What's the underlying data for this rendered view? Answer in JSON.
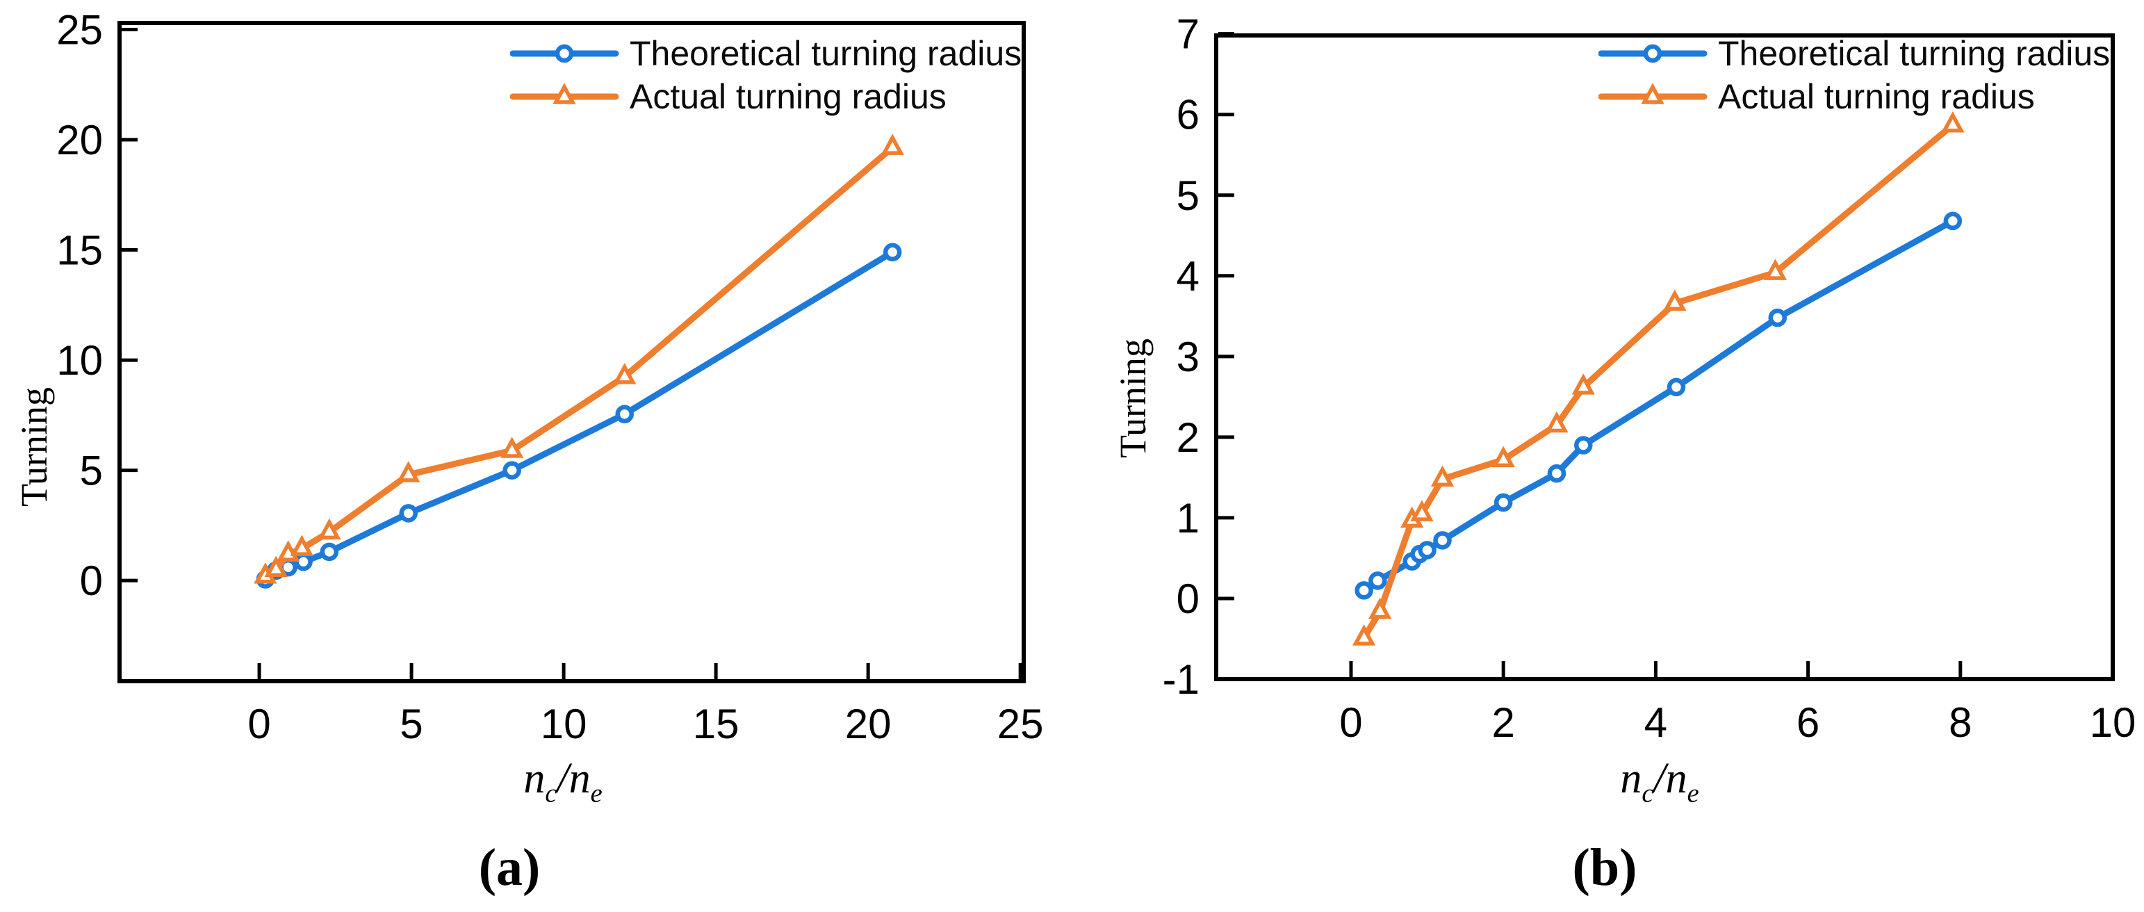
{
  "chart_data": [
    {
      "id": "a",
      "type": "line",
      "caption": "(a)",
      "ylabel": "Turning",
      "xlabel": {
        "var1": "n",
        "sub1": "c",
        "divider": "/",
        "var2": "n",
        "sub2": "e"
      },
      "x_ticks": [
        0,
        5,
        10,
        15,
        20,
        25
      ],
      "y_ticks": [
        0,
        5,
        10,
        15,
        20,
        25
      ],
      "x_range": [
        -4.59,
        25.11
      ],
      "y_range": [
        -4.57,
        25.3
      ],
      "grid": false,
      "legend_position": "top-right-inside",
      "series": [
        {
          "name": "Theoretical turning radius",
          "color": "#1e7ad8",
          "marker": "circle",
          "points": [
            [
              0.2,
              0.05
            ],
            [
              0.55,
              0.45
            ],
            [
              0.95,
              0.6
            ],
            [
              1.45,
              0.85
            ],
            [
              2.3,
              1.3
            ],
            [
              4.9,
              3.05
            ],
            [
              8.3,
              5.0
            ],
            [
              12,
              7.55
            ],
            [
              20.8,
              14.9
            ]
          ]
        },
        {
          "name": "Actual turning radius",
          "color": "#ef7e2e",
          "marker": "triangle",
          "points": [
            [
              0.2,
              0.2
            ],
            [
              0.55,
              0.5
            ],
            [
              0.95,
              1.2
            ],
            [
              1.4,
              1.45
            ],
            [
              2.3,
              2.2
            ],
            [
              4.9,
              4.8
            ],
            [
              8.3,
              5.9
            ],
            [
              12,
              9.25
            ],
            [
              20.8,
              19.65
            ]
          ]
        }
      ]
    },
    {
      "id": "b",
      "type": "line",
      "caption": "(b)",
      "ylabel": "Turning",
      "xlabel": {
        "var1": "n",
        "sub1": "c",
        "divider": "/",
        "var2": "n",
        "sub2": "e"
      },
      "x_ticks": [
        0,
        2,
        4,
        6,
        8,
        10
      ],
      "y_ticks": [
        -1,
        0,
        1,
        2,
        3,
        4,
        5,
        6,
        7
      ],
      "x_range": [
        -1.77,
        10.0
      ],
      "y_range": [
        -1.0,
        6.98
      ],
      "grid": false,
      "legend_position": "top-right-inside",
      "series": [
        {
          "name": "Theoretical turning radius",
          "color": "#1e7ad8",
          "marker": "circle",
          "points": [
            [
              0.17,
              0.1
            ],
            [
              0.35,
              0.22
            ],
            [
              0.8,
              0.46
            ],
            [
              0.9,
              0.55
            ],
            [
              1.0,
              0.6
            ],
            [
              1.2,
              0.72
            ],
            [
              2.0,
              1.19
            ],
            [
              2.7,
              1.55
            ],
            [
              3.05,
              1.9
            ],
            [
              4.27,
              2.62
            ],
            [
              5.6,
              3.48
            ],
            [
              7.9,
              4.68
            ]
          ]
        },
        {
          "name": "Actual turning radius",
          "color": "#ef7e2e",
          "marker": "triangle",
          "points": [
            [
              0.17,
              -0.49
            ],
            [
              0.38,
              -0.16
            ],
            [
              0.8,
              0.97
            ],
            [
              0.93,
              1.05
            ],
            [
              1.2,
              1.48
            ],
            [
              2.0,
              1.72
            ],
            [
              2.7,
              2.15
            ],
            [
              3.05,
              2.62
            ],
            [
              4.25,
              3.66
            ],
            [
              5.57,
              4.04
            ],
            [
              7.9,
              5.87
            ]
          ]
        }
      ]
    }
  ]
}
